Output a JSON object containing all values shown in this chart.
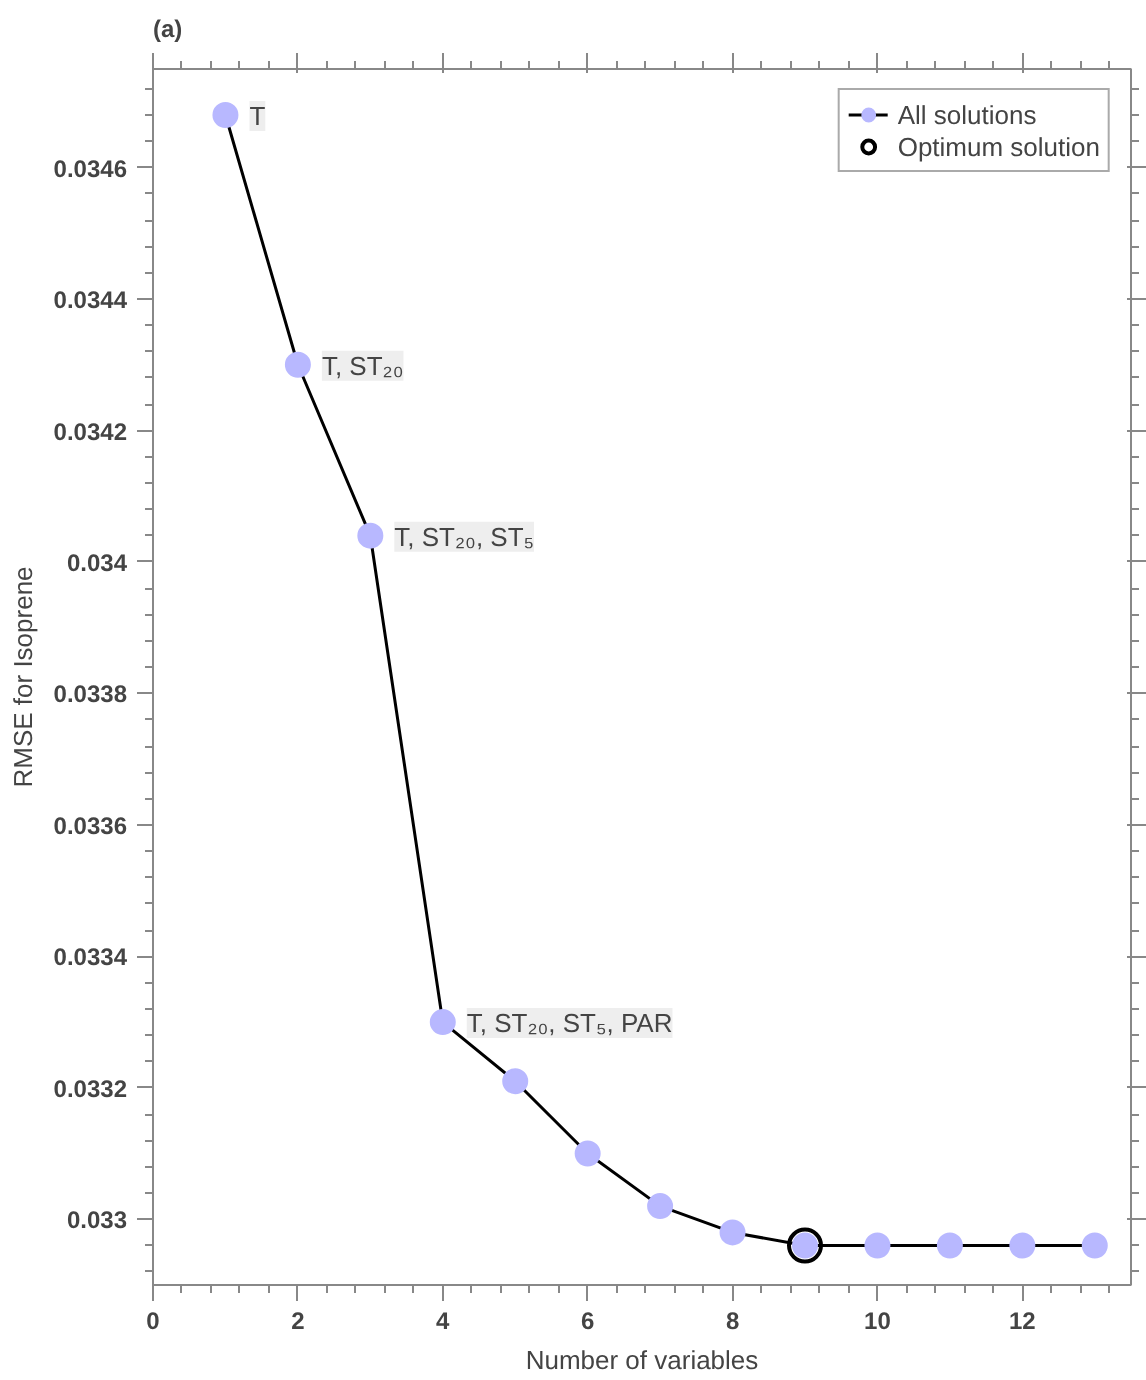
{
  "chart_data": {
    "type": "line",
    "title": "(a)",
    "xlabel": "Number of variables",
    "ylabel": "RMSE for Isoprene",
    "x": [
      1,
      2,
      3,
      4,
      5,
      6,
      7,
      8,
      9,
      10,
      11,
      12,
      13
    ],
    "series": [
      {
        "name": "All solutions",
        "color": "#b8b8ff",
        "marker": "circle",
        "values": [
          0.03468,
          0.0343,
          0.03404,
          0.0333,
          0.03321,
          0.0331,
          0.03302,
          0.03298,
          0.03296,
          0.03296,
          0.03296,
          0.03296,
          0.03296
        ]
      },
      {
        "name": "Optimum solution",
        "type": "scatter",
        "color": "#000000",
        "marker": "circle",
        "x": [
          9
        ],
        "values": [
          0.03296
        ]
      }
    ],
    "xlim": [
      0,
      13.5
    ],
    "xticks": [
      0,
      2,
      4,
      6,
      8,
      10,
      12
    ],
    "ylim": [
      0.0329,
      0.03475
    ],
    "yticks": [
      0.033,
      0.0332,
      0.0334,
      0.0336,
      0.0338,
      0.034,
      0.0342,
      0.0344,
      0.0346
    ],
    "annotations": [
      {
        "text": "T",
        "x": 1,
        "y": 0.03468
      },
      {
        "text": "T, ST₂₀",
        "x": 2,
        "y": 0.0343
      },
      {
        "text": "T, ST₂₀, ST₅",
        "x": 3,
        "y": 0.03404
      },
      {
        "text": "T, ST₂₀, ST₅, PAR",
        "x": 4,
        "y": 0.0333
      }
    ],
    "grid": false,
    "legend": "top right"
  }
}
